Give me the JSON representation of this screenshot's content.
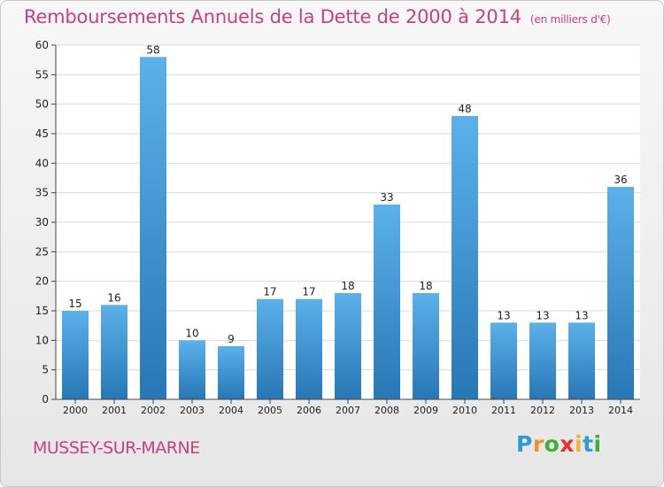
{
  "title": "Remboursements Annuels de la Dette de 2000 à 2014",
  "unit_note": "(en milliers d'€)",
  "commune": "MUSSEY-SUR-MARNE",
  "logo": {
    "letters": [
      "P",
      "r",
      "o",
      "x",
      "i",
      "t",
      "i"
    ],
    "colors": [
      "#2e9ad8",
      "#f29222",
      "#45ad3c",
      "#e8312f",
      "#f0b62a",
      "#2e9ad8",
      "#45ad3c"
    ]
  },
  "colors": {
    "title": "#c4417e",
    "bar_light": "#5cb1ea",
    "bar_dark": "#2777b4",
    "grid": "#dadada",
    "axis_text": "#222222"
  },
  "chart_data": {
    "type": "bar",
    "categories": [
      "2000",
      "2001",
      "2002",
      "2003",
      "2004",
      "2005",
      "2006",
      "2007",
      "2008",
      "2009",
      "2010",
      "2011",
      "2012",
      "2013",
      "2014"
    ],
    "values": [
      15,
      16,
      58,
      10,
      9,
      17,
      17,
      18,
      33,
      18,
      48,
      13,
      13,
      13,
      36
    ],
    "ylim": [
      0,
      60
    ],
    "yticks": [
      0,
      5,
      10,
      15,
      20,
      25,
      30,
      35,
      40,
      45,
      50,
      55,
      60
    ],
    "grid": true,
    "data_labels": true
  }
}
